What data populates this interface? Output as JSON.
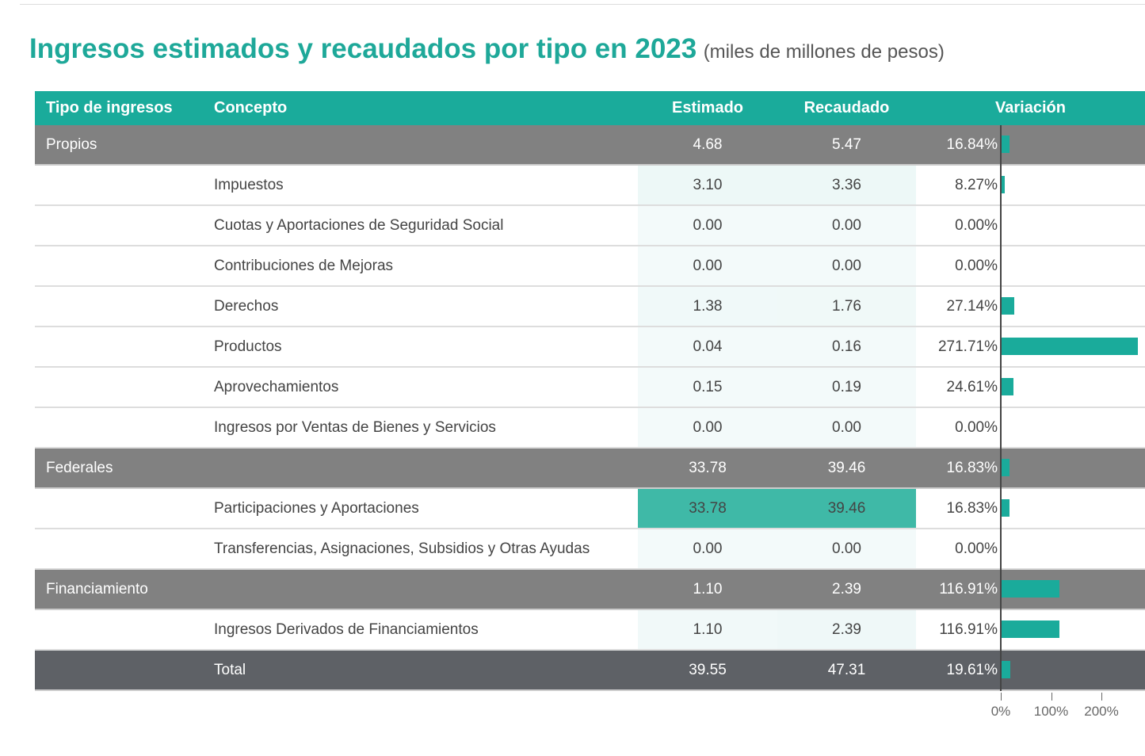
{
  "title": {
    "main": "Ingresos estimados y recaudados por tipo en 2023",
    "sub": "(miles de millones de pesos)"
  },
  "colors": {
    "accent": "#1aab9b",
    "group_row": "#818181",
    "total_row": "#5e6166"
  },
  "chart_data": {
    "type": "table",
    "columns": [
      "Tipo de ingresos",
      "Concepto",
      "Estimado",
      "Recaudado",
      "Variación"
    ],
    "rows": [
      {
        "kind": "group",
        "tipo": "Propios",
        "concepto": "",
        "estimado": "4.68",
        "recaudado": "5.47",
        "variacion": "16.84%",
        "var_value": 16.84
      },
      {
        "kind": "detail",
        "tipo": "",
        "concepto": "Impuestos",
        "estimado": "3.10",
        "recaudado": "3.36",
        "variacion": "8.27%",
        "var_value": 8.27
      },
      {
        "kind": "detail",
        "tipo": "",
        "concepto": "Cuotas y Aportaciones de Seguridad Social",
        "estimado": "0.00",
        "recaudado": "0.00",
        "variacion": "0.00%",
        "var_value": 0
      },
      {
        "kind": "detail",
        "tipo": "",
        "concepto": "Contribuciones de Mejoras",
        "estimado": "0.00",
        "recaudado": "0.00",
        "variacion": "0.00%",
        "var_value": 0
      },
      {
        "kind": "detail",
        "tipo": "",
        "concepto": "Derechos",
        "estimado": "1.38",
        "recaudado": "1.76",
        "variacion": "27.14%",
        "var_value": 27.14
      },
      {
        "kind": "detail",
        "tipo": "",
        "concepto": "Productos",
        "estimado": "0.04",
        "recaudado": "0.16",
        "variacion": "271.71%",
        "var_value": 271.71
      },
      {
        "kind": "detail",
        "tipo": "",
        "concepto": "Aprovechamientos",
        "estimado": "0.15",
        "recaudado": "0.19",
        "variacion": "24.61%",
        "var_value": 24.61
      },
      {
        "kind": "detail",
        "tipo": "",
        "concepto": "Ingresos por Ventas de Bienes y Servicios",
        "estimado": "0.00",
        "recaudado": "0.00",
        "variacion": "0.00%",
        "var_value": 0
      },
      {
        "kind": "group",
        "tipo": "Federales",
        "concepto": "",
        "estimado": "33.78",
        "recaudado": "39.46",
        "variacion": "16.83%",
        "var_value": 16.83
      },
      {
        "kind": "detail",
        "tipo": "",
        "concepto": "Participaciones y Aportaciones",
        "estimado": "33.78",
        "recaudado": "39.46",
        "variacion": "16.83%",
        "var_value": 16.83
      },
      {
        "kind": "detail",
        "tipo": "",
        "concepto": "Transferencias, Asignaciones, Subsidios y Otras Ayudas",
        "estimado": "0.00",
        "recaudado": "0.00",
        "variacion": "0.00%",
        "var_value": 0
      },
      {
        "kind": "group",
        "tipo": "Financiamiento",
        "concepto": "",
        "estimado": "1.10",
        "recaudado": "2.39",
        "variacion": "116.91%",
        "var_value": 116.91
      },
      {
        "kind": "detail",
        "tipo": "",
        "concepto": "Ingresos Derivados de Financiamientos",
        "estimado": "1.10",
        "recaudado": "2.39",
        "variacion": "116.91%",
        "var_value": 116.91
      },
      {
        "kind": "total",
        "tipo": "",
        "concepto": "Total",
        "estimado": "39.55",
        "recaudado": "47.31",
        "variacion": "19.61%",
        "var_value": 19.61
      }
    ],
    "x_axis_ticks": [
      "0%",
      "100%",
      "200%"
    ],
    "x_axis_values": [
      0,
      100,
      200
    ]
  }
}
